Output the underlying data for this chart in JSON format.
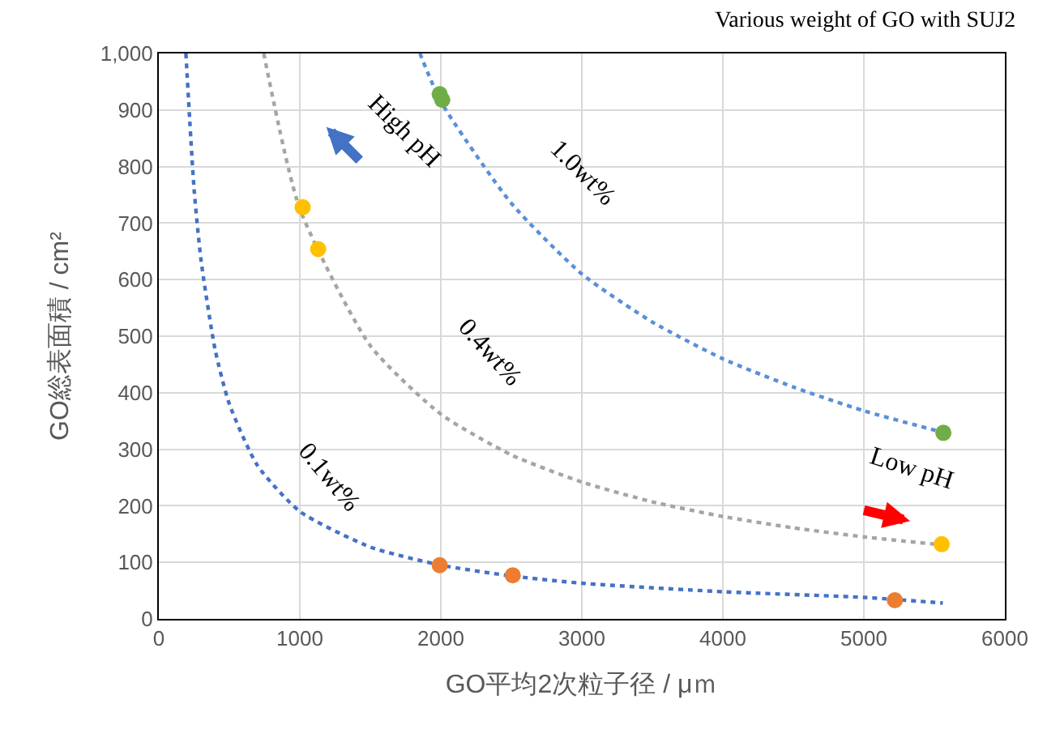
{
  "chart_data": {
    "type": "scatter",
    "title": "Various weight of GO with SUJ2",
    "xlabel": "GO平均2次粒子径 / μｍ",
    "ylabel": "GO総表面積 / cm²",
    "xlim": [
      0,
      6000
    ],
    "xticks": [
      0,
      1000,
      2000,
      3000,
      4000,
      5000,
      6000
    ],
    "ylim": [
      0,
      1000
    ],
    "yticks": [
      0,
      100,
      200,
      300,
      400,
      500,
      600,
      700,
      800,
      900,
      {
        "value": 1000,
        "label": "1,000"
      }
    ],
    "grid": true,
    "series": [
      {
        "type": "line",
        "color": "#5b8fd6",
        "line_style": "dotted",
        "marker": "none",
        "x": [
          1852,
          2000,
          2500,
          3000,
          3500,
          4000,
          4500,
          5000,
          5560
        ],
        "values": [
          1000,
          915,
          735,
          610,
          525,
          460,
          410,
          368,
          330
        ]
      },
      {
        "type": "line",
        "color": "#a5a5a5",
        "line_style": "dotted",
        "marker": "none",
        "x": [
          744,
          1000,
          1500,
          2000,
          2500,
          3000,
          3500,
          4000,
          4500,
          5000,
          5550
        ],
        "values": [
          1000,
          725,
          483,
          362,
          290,
          242,
          207,
          181,
          161,
          145,
          131
        ]
      },
      {
        "type": "line",
        "color": "#4472c4",
        "line_style": "dotted",
        "marker": "none",
        "x": [
          192,
          250,
          300,
          400,
          500,
          700,
          1000,
          1500,
          2000,
          2500,
          3000,
          4000,
          5000,
          5560
        ],
        "values": [
          1000,
          760,
          633,
          475,
          380,
          271,
          190,
          127,
          95,
          76,
          63,
          48,
          38,
          28
        ]
      },
      {
        "color": "#70ad47",
        "marker": "circle",
        "x": [
          1992,
          2010,
          5564
        ],
        "values": [
          928,
          918,
          329
        ]
      },
      {
        "color": "#ffc000",
        "marker": "circle",
        "x": [
          1020,
          1130,
          5552
        ],
        "values": [
          728,
          654,
          132
        ]
      },
      {
        "color": "#ed7d31",
        "marker": "circle",
        "x": [
          1992,
          2510,
          5220
        ],
        "values": [
          95,
          77,
          33
        ]
      }
    ],
    "annotations": [
      "1.0wt%",
      "0.4wt%",
      "0.1wt%",
      "High pH",
      "Low pH"
    ]
  }
}
